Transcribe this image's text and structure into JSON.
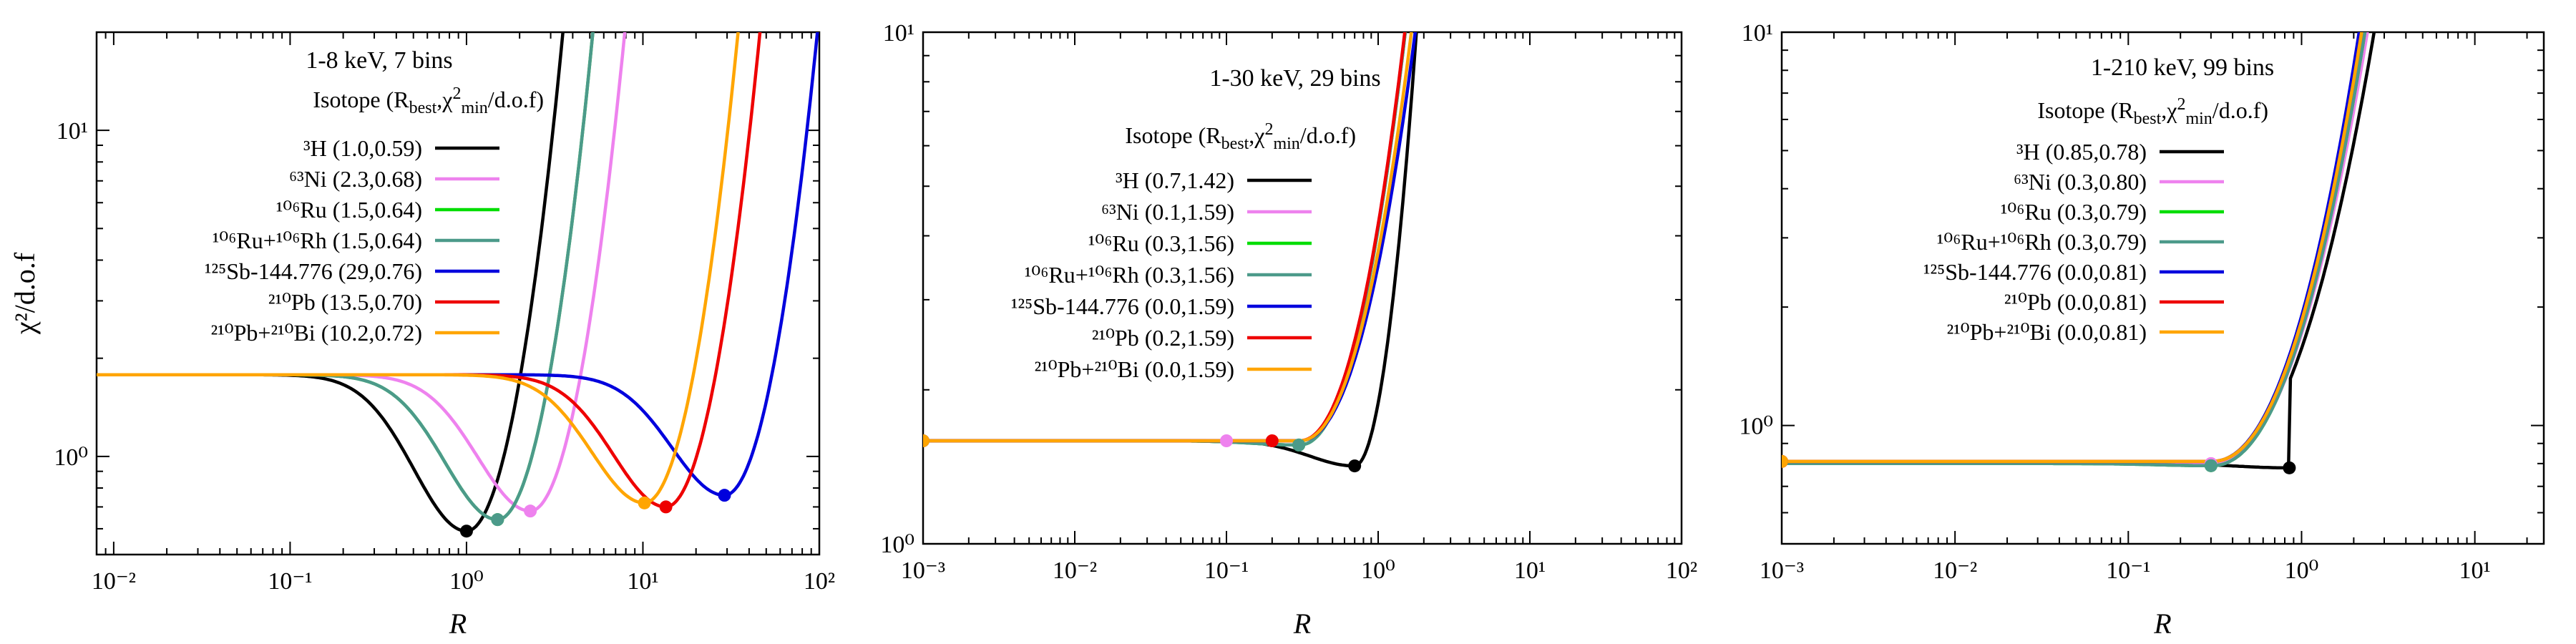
{
  "figure": {
    "shared_xlabel": "R",
    "shared_ylabel": "χ²/d.o.f"
  },
  "chart_data": [
    {
      "type": "line",
      "title": "1-8 keV, 7 bins",
      "legend_title": "Isotope (R_best, χ²_min/d.o.f)",
      "xlabel": "R",
      "ylabel": "χ²/d.o.f",
      "xscale": "log",
      "yscale": "log",
      "xlim": [
        0.008,
        100
      ],
      "ylim": [
        0.5,
        20
      ],
      "x_ticks": [
        0.01,
        0.1,
        1,
        10,
        100
      ],
      "x_tick_labels": [
        "10⁻²",
        "10⁻¹",
        "10⁰",
        "10¹",
        "10²"
      ],
      "y_ticks": [
        1,
        10
      ],
      "y_tick_labels": [
        "10⁰",
        "10¹"
      ],
      "legend_position": "top-left",
      "series": [
        {
          "name": "³H (1.0,0.59)",
          "iso": "3H",
          "color": "#000000",
          "rbest": 1.0,
          "chi2min": 0.59,
          "plateau": 1.78,
          "steep": 3.2
        },
        {
          "name": "⁶³Ni (2.3,0.68)",
          "iso": "63Ni",
          "color": "#ee82ee",
          "rbest": 2.3,
          "chi2min": 0.68,
          "plateau": 1.78,
          "steep": 3.2
        },
        {
          "name": "¹⁰⁶Ru (1.5,0.64)",
          "iso": "106Ru",
          "color": "#00dd00",
          "rbest": 1.5,
          "chi2min": 0.64,
          "plateau": 1.78,
          "steep": 3.2
        },
        {
          "name": "¹⁰⁶Ru+¹⁰⁶Rh (1.5,0.64)",
          "iso": "106Ru+106Rh",
          "color": "#4c9a8a",
          "rbest": 1.5,
          "chi2min": 0.64,
          "plateau": 1.78,
          "steep": 3.2
        },
        {
          "name": "¹²⁵Sb-144.776 (29,0.76)",
          "iso": "125Sb",
          "color": "#0000dd",
          "rbest": 29,
          "chi2min": 0.76,
          "plateau": 1.78,
          "steep": 3.2
        },
        {
          "name": "²¹⁰Pb (13.5,0.70)",
          "iso": "210Pb",
          "color": "#ee0000",
          "rbest": 13.5,
          "chi2min": 0.7,
          "plateau": 1.78,
          "steep": 3.2
        },
        {
          "name": "²¹⁰Pb+²¹⁰Bi (10.2,0.72)",
          "iso": "210Pb+210Bi",
          "color": "#ffa500",
          "rbest": 10.2,
          "chi2min": 0.72,
          "plateau": 1.78,
          "steep": 3.2
        }
      ]
    },
    {
      "type": "line",
      "title": "1-30 keV, 29 bins",
      "legend_title": "Isotope (R_best, χ²_min/d.o.f)",
      "xlabel": "R",
      "ylabel": "χ²/d.o.f",
      "xscale": "log",
      "yscale": "log",
      "xlim": [
        0.001,
        100
      ],
      "ylim": [
        1,
        10
      ],
      "x_ticks": [
        0.001,
        0.01,
        0.1,
        1,
        10,
        100
      ],
      "x_tick_labels": [
        "10⁻³",
        "10⁻²",
        "10⁻¹",
        "10⁰",
        "10¹",
        "10²"
      ],
      "y_ticks": [
        1,
        10
      ],
      "y_tick_labels": [
        "10⁰",
        "10¹"
      ],
      "legend_position": "top-left",
      "series": [
        {
          "name": "³H (0.7,1.42)",
          "iso": "3H",
          "color": "#000000",
          "rbest": 0.7,
          "chi2min": 1.42,
          "plateau": 1.59,
          "steep": 3.2
        },
        {
          "name": "⁶³Ni (0.1,1.59)",
          "iso": "63Ni",
          "color": "#ee82ee",
          "rbest": 0.1,
          "chi2min": 1.59,
          "plateau": 1.59,
          "steep": 3.2
        },
        {
          "name": "¹⁰⁶Ru (0.3,1.56)",
          "iso": "106Ru",
          "color": "#00dd00",
          "rbest": 0.3,
          "chi2min": 1.56,
          "plateau": 1.59,
          "steep": 3.2
        },
        {
          "name": "¹⁰⁶Ru+¹⁰⁶Rh (0.3,1.56)",
          "iso": "106Ru+106Rh",
          "color": "#4c9a8a",
          "rbest": 0.3,
          "chi2min": 1.56,
          "plateau": 1.59,
          "steep": 3.2
        },
        {
          "name": "¹²⁵Sb-144.776 (0.0,1.59)",
          "iso": "125Sb",
          "color": "#0000dd",
          "rbest": 0.0,
          "chi2min": 1.59,
          "plateau": 1.59,
          "steep": 2.6
        },
        {
          "name": "²¹⁰Pb (0.2,1.59)",
          "iso": "210Pb",
          "color": "#ee0000",
          "rbest": 0.2,
          "chi2min": 1.59,
          "plateau": 1.59,
          "steep": 3.2
        },
        {
          "name": "²¹⁰Pb+²¹⁰Bi (0.0,1.59)",
          "iso": "210Pb+210Bi",
          "color": "#ffa500",
          "rbest": 0.0,
          "chi2min": 1.59,
          "plateau": 1.59,
          "steep": 2.8
        }
      ]
    },
    {
      "type": "line",
      "title": "1-210 keV, 99 bins",
      "legend_title": "Isotope (R_best, χ²_min/d.o.f)",
      "xlabel": "R",
      "ylabel": "χ²/d.o.f",
      "xscale": "log",
      "yscale": "log",
      "xlim": [
        0.001,
        25
      ],
      "ylim": [
        0.5,
        10
      ],
      "x_ticks": [
        0.001,
        0.01,
        0.1,
        1,
        10
      ],
      "x_tick_labels": [
        "10⁻³",
        "10⁻²",
        "10⁻¹",
        "10⁰",
        "10¹"
      ],
      "y_ticks": [
        1,
        10
      ],
      "y_tick_labels": [
        "10⁰",
        "10¹"
      ],
      "legend_position": "top-right",
      "series": [
        {
          "name": "³H (0.85,0.78)",
          "iso": "3H",
          "color": "#000000",
          "rbest": 0.85,
          "chi2min": 0.78,
          "plateau": 0.8,
          "steep": 2.3
        },
        {
          "name": "⁶³Ni (0.3,0.80)",
          "iso": "63Ni",
          "color": "#ee82ee",
          "rbest": 0.3,
          "chi2min": 0.8,
          "plateau": 0.8,
          "steep": 2.5
        },
        {
          "name": "¹⁰⁶Ru (0.3,0.79)",
          "iso": "106Ru",
          "color": "#00dd00",
          "rbest": 0.3,
          "chi2min": 0.79,
          "plateau": 0.8,
          "steep": 2.6
        },
        {
          "name": "¹⁰⁶Ru+¹⁰⁶Rh (0.3,0.79)",
          "iso": "106Ru+106Rh",
          "color": "#4c9a8a",
          "rbest": 0.3,
          "chi2min": 0.79,
          "plateau": 0.8,
          "steep": 2.6
        },
        {
          "name": "¹²⁵Sb-144.776 (0.0,0.81)",
          "iso": "125Sb",
          "color": "#0000dd",
          "rbest": 0.0,
          "chi2min": 0.81,
          "plateau": 0.81,
          "steep": 2.8
        },
        {
          "name": "²¹⁰Pb (0.0,0.81)",
          "iso": "210Pb",
          "color": "#ee0000",
          "rbest": 0.0,
          "chi2min": 0.81,
          "plateau": 0.81,
          "steep": 2.7
        },
        {
          "name": "²¹⁰Pb+²¹⁰Bi (0.0,0.81)",
          "iso": "210Pb+210Bi",
          "color": "#ffa500",
          "rbest": 0.0,
          "chi2min": 0.81,
          "plateau": 0.81,
          "steep": 2.7
        }
      ]
    }
  ]
}
